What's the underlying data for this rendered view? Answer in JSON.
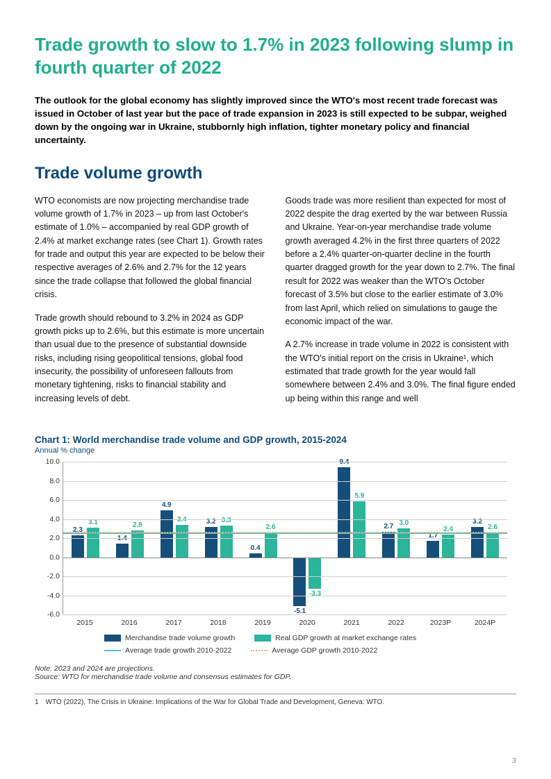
{
  "colors": {
    "teal": "#1fae8f",
    "blue": "#0f4a7a",
    "bar1": "#164e7a",
    "bar2": "#2bb59a",
    "avg_trade_line": "#5fb7c9",
    "avg_gdp_line": "#e6b566",
    "text": "#000000"
  },
  "title": "Trade growth to slow to 1.7% in 2023 following slump in fourth quarter of 2022",
  "lead": "The outlook for the global economy has slightly improved since the WTO's most recent trade forecast was issued in October of last year but the pace of trade expansion in 2023 is still expected to be subpar, weighed down by the ongoing war in Ukraine, stubbornly high inflation, tighter monetary policy and financial uncertainty.",
  "section_title": "Trade volume growth",
  "body": {
    "left": [
      "WTO economists are now projecting merchandise trade volume growth of 1.7% in 2023 – up from last October's estimate of 1.0% – accompanied by real GDP growth of 2.4% at market exchange rates (see Chart 1). Growth rates for trade and output this year are expected to be below their respective averages of 2.6% and 2.7% for the 12 years since the trade collapse that followed the global financial crisis.",
      "Trade growth should rebound to 3.2% in 2024 as GDP growth picks up to 2.6%, but this estimate is more uncertain than usual due to the presence of substantial downside risks, including rising geopolitical tensions, global food insecurity, the possibility of unforeseen fallouts from monetary tightening, risks to financial stability and increasing levels of debt."
    ],
    "right": [
      "Goods trade was more resilient than expected for most of 2022 despite the drag exerted by the war between Russia and Ukraine. Year-on-year merchandise trade volume growth averaged 4.2% in the first three quarters of 2022 before a 2.4% quarter-on-quarter decline in the fourth quarter dragged growth for the year down to 2.7%. The final result for 2022 was weaker than the WTO's October forecast of 3.5% but close to the earlier estimate of 3.0% from last April, which relied on simulations to gauge the economic impact of the war.",
      "A 2.7% increase in trade volume in 2022 is consistent with the WTO's initial report on the crisis in Ukraine¹, which estimated that trade growth for the year would fall somewhere between 2.4% and 3.0%. The final figure ended up being within this range and well"
    ]
  },
  "chart": {
    "title": "Chart 1: World merchandise trade volume and GDP growth, 2015-2024",
    "subtitle": "Annual % change",
    "type": "bar",
    "ymin": -6.0,
    "ymax": 10.0,
    "ystep": 2.0,
    "yticks": [
      "10.0",
      "8.0",
      "6.0",
      "4.0",
      "2.0",
      "0.0",
      "-2.0",
      "-4.0",
      "-6.0"
    ],
    "categories": [
      "2015",
      "2016",
      "2017",
      "2018",
      "2019",
      "2020",
      "2021",
      "2022",
      "2023P",
      "2024P"
    ],
    "series": [
      {
        "name": "Merchandise trade volume growth",
        "color": "#164e7a",
        "values": [
          2.3,
          1.4,
          4.9,
          3.2,
          0.4,
          -5.1,
          9.4,
          2.7,
          1.7,
          3.2
        ]
      },
      {
        "name": "Real GDP growth at market exchange rates",
        "color": "#2bb59a",
        "values": [
          3.1,
          2.8,
          3.4,
          3.3,
          2.6,
          -3.3,
          5.9,
          3.0,
          2.4,
          2.6
        ]
      }
    ],
    "ref_lines": [
      {
        "name": "Average trade growth 2010-2022",
        "value": 2.6,
        "color": "#5fb7c9",
        "style": "solid"
      },
      {
        "name": "Average GDP growth 2010-2022",
        "value": 2.7,
        "color": "#e6b566",
        "style": "dotted"
      }
    ],
    "legend": [
      "Merchandise trade volume growth",
      "Real GDP growth at market exchange rates",
      "Average trade growth 2010-2022",
      "Average GDP growth 2010-2022"
    ],
    "note_label": "Note:",
    "note": " 2023 and 2024 are projections.",
    "source_label": "Source:",
    "source": " WTO for merchandise trade volume and consensus estimates for GDP."
  },
  "footnote": {
    "num": "1",
    "text": "WTO (2022), The Crisis in Ukraine: Implications of the War for Global Trade and Development, Geneva: WTO."
  },
  "page_number": "3"
}
